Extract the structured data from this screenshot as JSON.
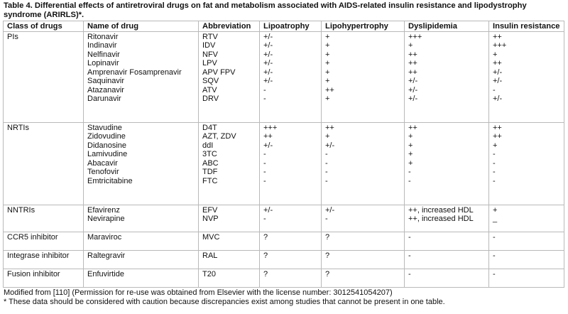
{
  "caption": "Table 4. Differential effects of antiretroviral drugs on fat and metabolism associated with AIDS-related insulin resistance and lipodystrophy syndrome (ARIRLS)*.",
  "headers": [
    "Class of drugs",
    "Name of drug",
    "Abbreviation",
    "Lipoatrophy",
    "Lipohypertrophy",
    "Dyslipidemia",
    "Insulin resistance"
  ],
  "groups": [
    {
      "class": "PIs",
      "rows": [
        [
          "Ritonavir",
          "RTV",
          "+/-",
          "+",
          "+++",
          "++"
        ],
        [
          "Indinavir",
          "IDV",
          "+/-",
          "+",
          "+",
          "+++"
        ],
        [
          "Nelfinavir",
          "NFV",
          "+/-",
          "+",
          "++",
          "+"
        ],
        [
          "Lopinavir",
          "LPV",
          "+/-",
          "+",
          "++",
          "++"
        ],
        [
          "Amprenavir Fosamprenavir",
          "APV FPV",
          "+/-",
          "+",
          "++",
          "+/-"
        ],
        [
          "Saquinavir",
          "SQV",
          "+/-",
          "+",
          "+/-",
          "+/-"
        ],
        [
          "Atazanavir",
          "ATV",
          "-",
          "++",
          "+/-",
          "-"
        ],
        [
          "Darunavir",
          "DRV",
          "-",
          "+",
          "+/-",
          "+/-"
        ]
      ]
    },
    {
      "class": "NRTIs",
      "rows": [
        [
          "Stavudine",
          "D4T",
          "+++",
          "++",
          "++",
          "++"
        ],
        [
          "Zidovudine",
          "AZT, ZDV",
          "++",
          "+",
          "+",
          "++"
        ],
        [
          "Didanosine",
          "ddI",
          "+/-",
          "+/-",
          "+",
          "+"
        ],
        [
          "Lamivudine",
          "3TC",
          "-",
          "-",
          "+",
          "-"
        ],
        [
          "Abacavir",
          "ABC",
          "-",
          "-",
          "+",
          "-"
        ],
        [
          "Tenofovir",
          "TDF",
          "-",
          "-",
          "-",
          "-"
        ],
        [
          "Emtricitabine",
          "FTC",
          "-",
          "-",
          "-",
          "-"
        ]
      ]
    },
    {
      "class": "NNTRIs",
      "rows": [
        [
          "Efavirenz",
          "EFV",
          "+/-",
          "+/-",
          "++, increased HDL",
          "+"
        ],
        [
          "Nevirapine",
          "NVP",
          "-",
          "-",
          "++, increased HDL",
          "_"
        ]
      ]
    },
    {
      "class": "CCR5 inhibitor",
      "rows": [
        [
          "Maraviroc",
          "MVC",
          "?",
          "?",
          "-",
          "-"
        ]
      ]
    },
    {
      "class": "Integrase inhibitor",
      "rows": [
        [
          "Raltegravir",
          "RAL",
          "?",
          "?",
          "-",
          "-"
        ]
      ]
    },
    {
      "class": "Fusion inhibitor",
      "rows": [
        [
          "Enfuvirtide",
          "T20",
          "?",
          "?",
          "-",
          "-"
        ]
      ]
    }
  ],
  "notes": [
    "Modified from [110] (Permission for re-use was obtained from Elsevier with the license number: 3012541054207)",
    "* These data should be considered with caution because discrepancies exist among studies that cannot be present in one table."
  ]
}
